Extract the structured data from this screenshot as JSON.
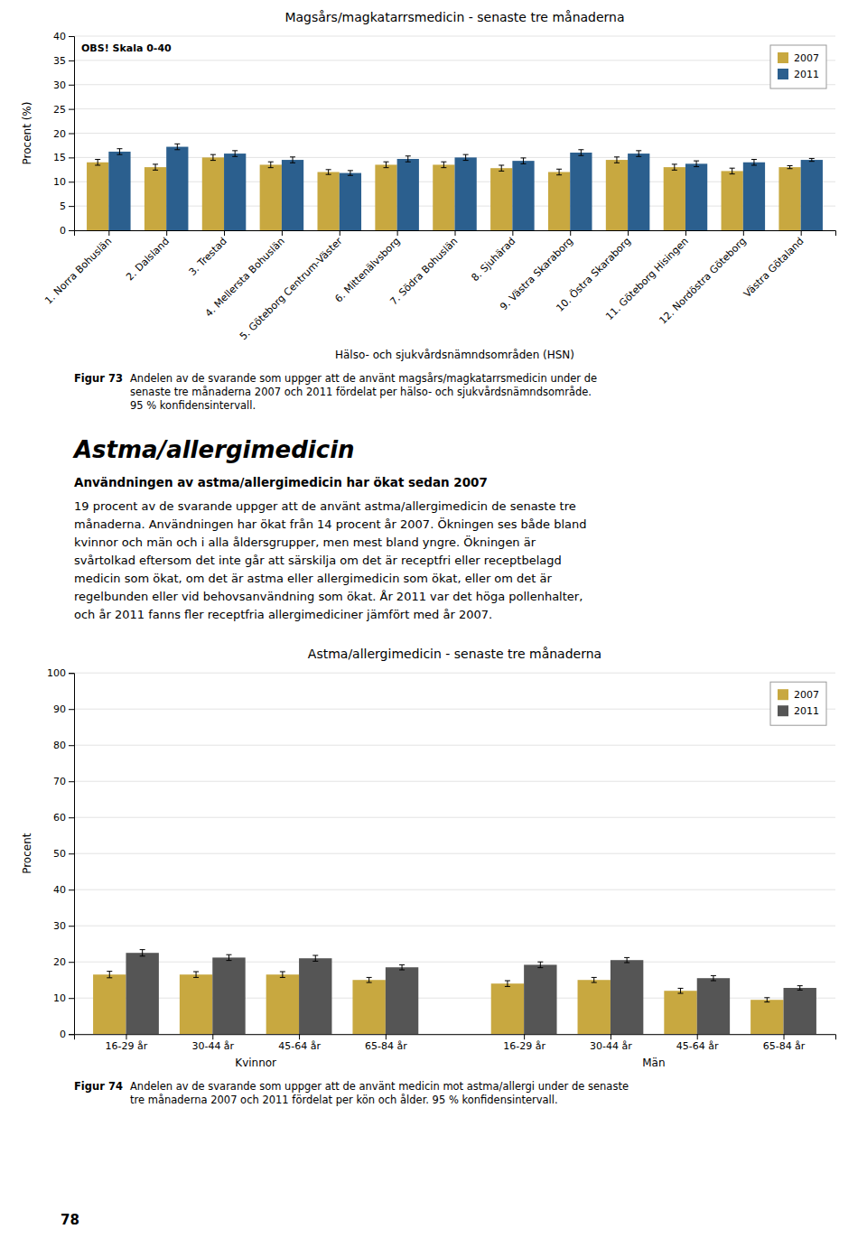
{
  "chart_data": [
    {
      "type": "bar",
      "title": "Magsårs/magkatarrsmedicin - senaste tre månaderna",
      "annotations": [
        "OBS! Skala 0-40"
      ],
      "ylabel": "Procent (%)",
      "xlabel": "Hälso- och sjukvårdsnämndsområden (HSN)",
      "ylim": [
        0,
        40
      ],
      "yticks": [
        0,
        5,
        10,
        15,
        20,
        25,
        30,
        35,
        40
      ],
      "grid": true,
      "legend": "upper right",
      "categories": [
        "1. Norra Bohuslän",
        "2. Dalsland",
        "3. Trestad",
        "4. Mellersta Bohuslän",
        "5. Göteborg Centrum-Väster",
        "6. Mittenälvsborg",
        "7. Södra Bohuslän",
        "8. Sjuhärad",
        "9. Västra Skaraborg",
        "10. Östra Skaraborg",
        "11. Göteborg Hisingen",
        "12. Nordöstra Göteborg",
        "Västra Götaland"
      ],
      "series": [
        {
          "name": "2007",
          "color": "#C8A840",
          "values": [
            14.0,
            13.0,
            15.0,
            13.5,
            12.0,
            13.5,
            13.5,
            12.8,
            12.0,
            14.5,
            13.0,
            12.2,
            13.0
          ],
          "errors": [
            0.6,
            0.6,
            0.6,
            0.6,
            0.5,
            0.6,
            0.6,
            0.6,
            0.6,
            0.6,
            0.6,
            0.6,
            0.3
          ]
        },
        {
          "name": "2011",
          "color": "#2B5F8E",
          "values": [
            16.2,
            17.2,
            15.8,
            14.5,
            11.8,
            14.7,
            15.0,
            14.3,
            16.0,
            15.8,
            13.7,
            14.0,
            14.5
          ],
          "errors": [
            0.6,
            0.6,
            0.6,
            0.6,
            0.5,
            0.6,
            0.6,
            0.6,
            0.6,
            0.6,
            0.6,
            0.6,
            0.3
          ]
        }
      ],
      "caption_label": "Figur 73",
      "caption": " Andelen av de svarande som uppger att de använt magsårs/magkatarrsmedicin under de\nsenaste tre månaderna 2007 och 2011 fördelat per hälso- och sjukvårdsnämndsområde.\n95 % konfidensintervall."
    },
    {
      "type": "bar",
      "title": "Astma/allergimedicin - senaste tre månaderna",
      "ylabel": "Procent",
      "ylim": [
        0,
        100
      ],
      "yticks": [
        0,
        10,
        20,
        30,
        40,
        50,
        60,
        70,
        80,
        90,
        100
      ],
      "grid": true,
      "legend": "upper right",
      "categories": [
        "16-29 år",
        "30-44 år",
        "45-64 år",
        "65-84 år",
        "16-29 år",
        "30-44 år",
        "45-64 år",
        "65-84 år"
      ],
      "sections": [
        "Kvinnor",
        "Män"
      ],
      "series": [
        {
          "name": "2007",
          "color": "#C8A840",
          "values": [
            16.5,
            16.5,
            16.5,
            15.0,
            14.0,
            15.0,
            12.0,
            9.5
          ],
          "errors": [
            0.9,
            0.8,
            0.8,
            0.7,
            0.8,
            0.7,
            0.7,
            0.6
          ]
        },
        {
          "name": "2011",
          "color": "#555555",
          "values": [
            22.5,
            21.2,
            21.0,
            18.5,
            19.2,
            20.5,
            15.5,
            12.8
          ],
          "errors": [
            0.9,
            0.8,
            0.8,
            0.7,
            0.8,
            0.7,
            0.7,
            0.6
          ]
        }
      ],
      "caption_label": "Figur 74",
      "caption": " Andelen av de svarande som uppger att de använt medicin mot astma/allergi under de senaste\ntre månaderna 2007 och 2011 fördelat per kön och ålder. 95 % konfidensintervall."
    }
  ],
  "text_section": {
    "heading": "Astma/allergimedicin",
    "subheading": "Användningen av astma/allergimedicin har ökat sedan 2007",
    "body": "19 procent av de svarande uppger att de använt astma/allergimedicin de senaste tre\nmånaderna. Användningen har ökat från 14 procent år 2007. Ökningen ses både bland\nkvinnor och män och i alla åldersgrupper, men mest bland yngre. Ökningen är\nsvårtolkad eftersom det inte går att särskilja om det är receptfri eller receptbelagd\nmedicin som ökat, om det är astma eller allergimedicin som ökat, eller om det är\nregelbunden eller vid behovsanvändning som ökat. År 2011 var det höga pollenhalter,\noch år 2011 fanns fler receptfria allergimediciner jämfört med år 2007."
  },
  "page_number": "78"
}
